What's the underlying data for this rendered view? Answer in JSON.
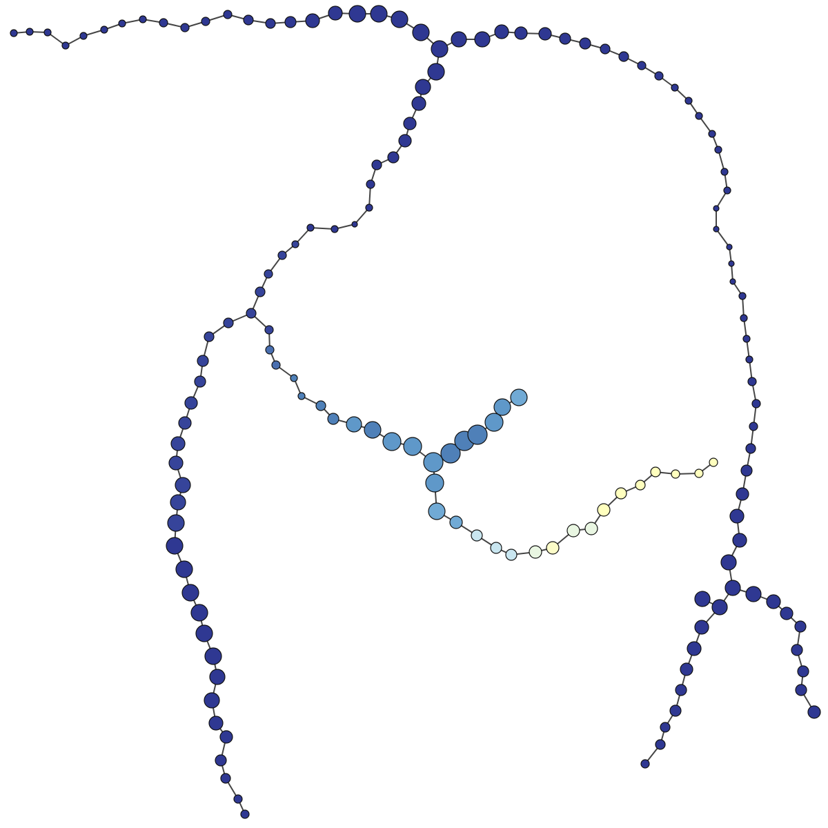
{
  "graph": {
    "edge_color": "#444444",
    "node_outline_color": "#111111",
    "palette": {
      "navy": "#2f3892",
      "indigo": "#36449a",
      "steel_blue": "#4a6fb0",
      "medium_blue": "#4f80b8",
      "sky_blue": "#5f98c9",
      "light_blue": "#71aad5",
      "pale_blue": "#c9e6f0",
      "mint": "#e9f6e2",
      "pale_yellow": "#fcfcc8",
      "cream": "#ffffbe"
    }
  }
}
